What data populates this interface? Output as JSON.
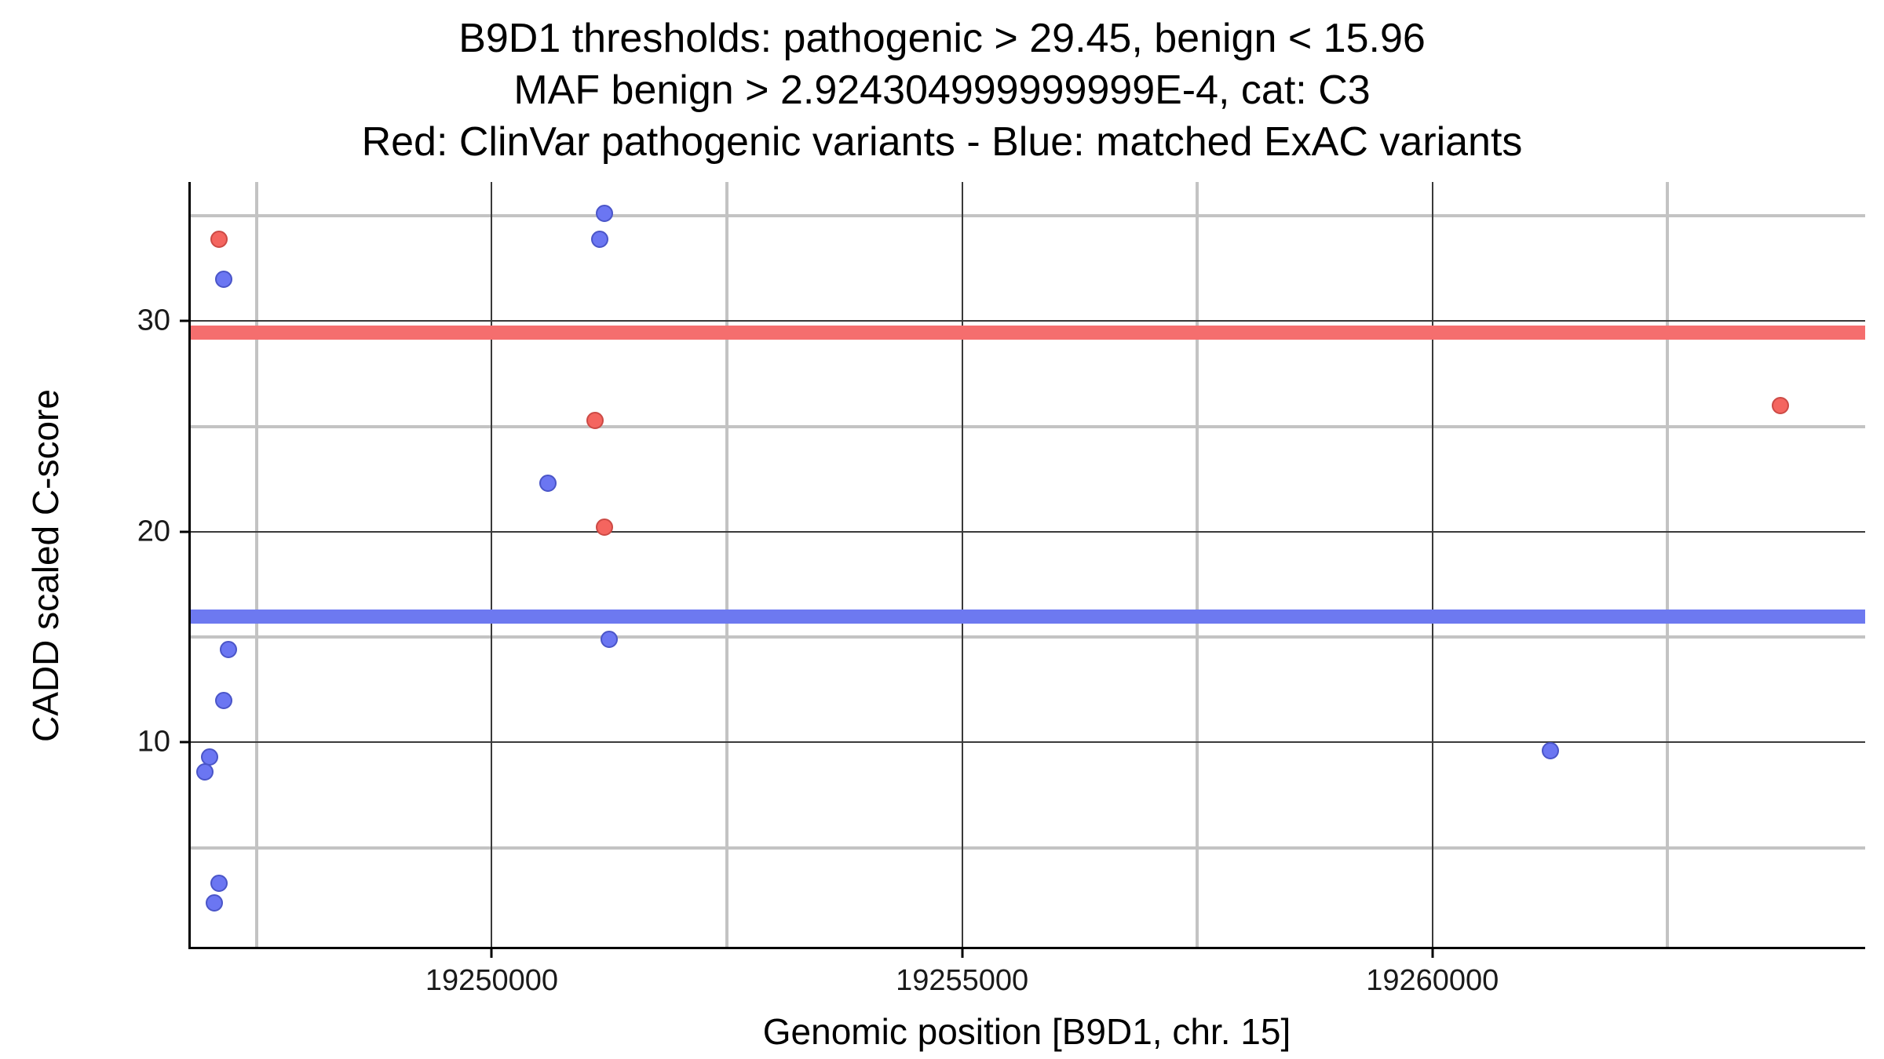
{
  "chart_data": {
    "type": "scatter",
    "title_lines": [
      "B9D1 thresholds: pathogenic > 29.45, benign < 15.96",
      "MAF benign > 2.924304999999999E-4, cat: C3",
      "Red: ClinVar pathogenic variants - Blue: matched ExAC variants"
    ],
    "xlabel": "Genomic position [B9D1, chr. 15]",
    "ylabel": "CADD scaled C-score",
    "xlim": [
      19246800,
      19264600
    ],
    "ylim": [
      0.3,
      36.6
    ],
    "x_major_ticks": [
      19250000,
      19255000,
      19260000
    ],
    "x_minor_ticks": [
      19247500,
      19252500,
      19257500,
      19262500
    ],
    "y_major_ticks": [
      10,
      20,
      30
    ],
    "y_minor_ticks": [
      5,
      15,
      25,
      35
    ],
    "grid": {
      "major_color": "#3a3a3a",
      "minor_color": "#c3c3c3"
    },
    "thresholds": {
      "pathogenic_value": 29.45,
      "benign_value": 15.96,
      "pathogenic_color": "#f56e6e",
      "benign_color": "#6d79f0"
    },
    "series": [
      {
        "name": "ClinVar pathogenic variants",
        "color": "#f4655f",
        "stroke": "#cc4a45",
        "points": [
          [
            19247100,
            33.9
          ],
          [
            19251100,
            25.3
          ],
          [
            19251200,
            20.2
          ],
          [
            19263700,
            26.0
          ]
        ]
      },
      {
        "name": "matched ExAC variants",
        "color": "#6b76f2",
        "stroke": "#4a55c8",
        "points": [
          [
            19251200,
            35.1
          ],
          [
            19251150,
            33.9
          ],
          [
            19247150,
            32.0
          ],
          [
            19250600,
            22.3
          ],
          [
            19251250,
            14.9
          ],
          [
            19247200,
            14.4
          ],
          [
            19247150,
            12.0
          ],
          [
            19247000,
            9.3
          ],
          [
            19246950,
            8.6
          ],
          [
            19261250,
            9.6
          ],
          [
            19247100,
            3.3
          ],
          [
            19247050,
            2.4
          ]
        ]
      }
    ]
  }
}
